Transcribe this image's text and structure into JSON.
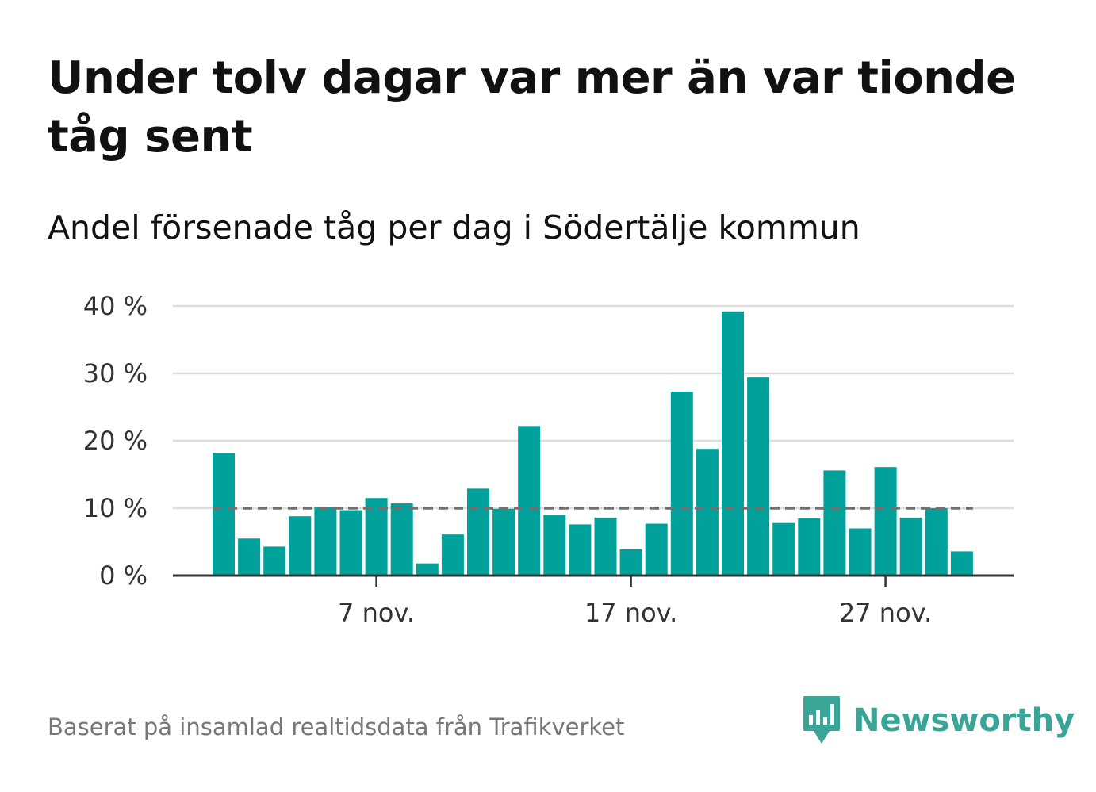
{
  "header": {
    "title": "Under tolv dagar var mer än var tionde tåg sent",
    "subtitle": "Andel försenade tåg per dag i Södertälje kommun"
  },
  "footer": {
    "source": "Baserat på insamlad realtidsdata från Trafikverket",
    "brand": "Newsworthy"
  },
  "colors": {
    "bar": "#00a19a",
    "reference_line": "#707070",
    "grid": "#dddddd",
    "axis": "#333333",
    "brand": "#3aa597"
  },
  "chart_data": {
    "type": "bar",
    "title": "Under tolv dagar var mer än var tionde tåg sent",
    "subtitle": "Andel försenade tåg per dag i Södertälje kommun",
    "x": [
      1,
      2,
      3,
      4,
      5,
      6,
      7,
      8,
      9,
      10,
      11,
      12,
      13,
      14,
      15,
      16,
      17,
      18,
      19,
      20,
      21,
      22,
      23,
      24,
      25,
      26,
      27,
      28,
      29,
      30
    ],
    "values": [
      18.2,
      5.5,
      4.3,
      8.8,
      10.2,
      9.7,
      11.5,
      10.7,
      1.8,
      6.1,
      12.9,
      9.9,
      22.2,
      9.0,
      7.6,
      8.6,
      3.9,
      7.7,
      27.3,
      18.8,
      39.2,
      29.4,
      7.8,
      8.5,
      15.6,
      7.0,
      16.1,
      8.6,
      10.0,
      3.6
    ],
    "reference_line": 10,
    "ylim": [
      0,
      40
    ],
    "y_ticks": [
      0,
      10,
      20,
      30,
      40
    ],
    "y_tick_labels": [
      "0 %",
      "10 %",
      "20 %",
      "30 %",
      "40 %"
    ],
    "x_ticks": [
      7,
      17,
      27
    ],
    "x_tick_labels": [
      "7 nov.",
      "17 nov.",
      "27 nov."
    ],
    "grid": true,
    "xlabel": "",
    "ylabel": ""
  }
}
